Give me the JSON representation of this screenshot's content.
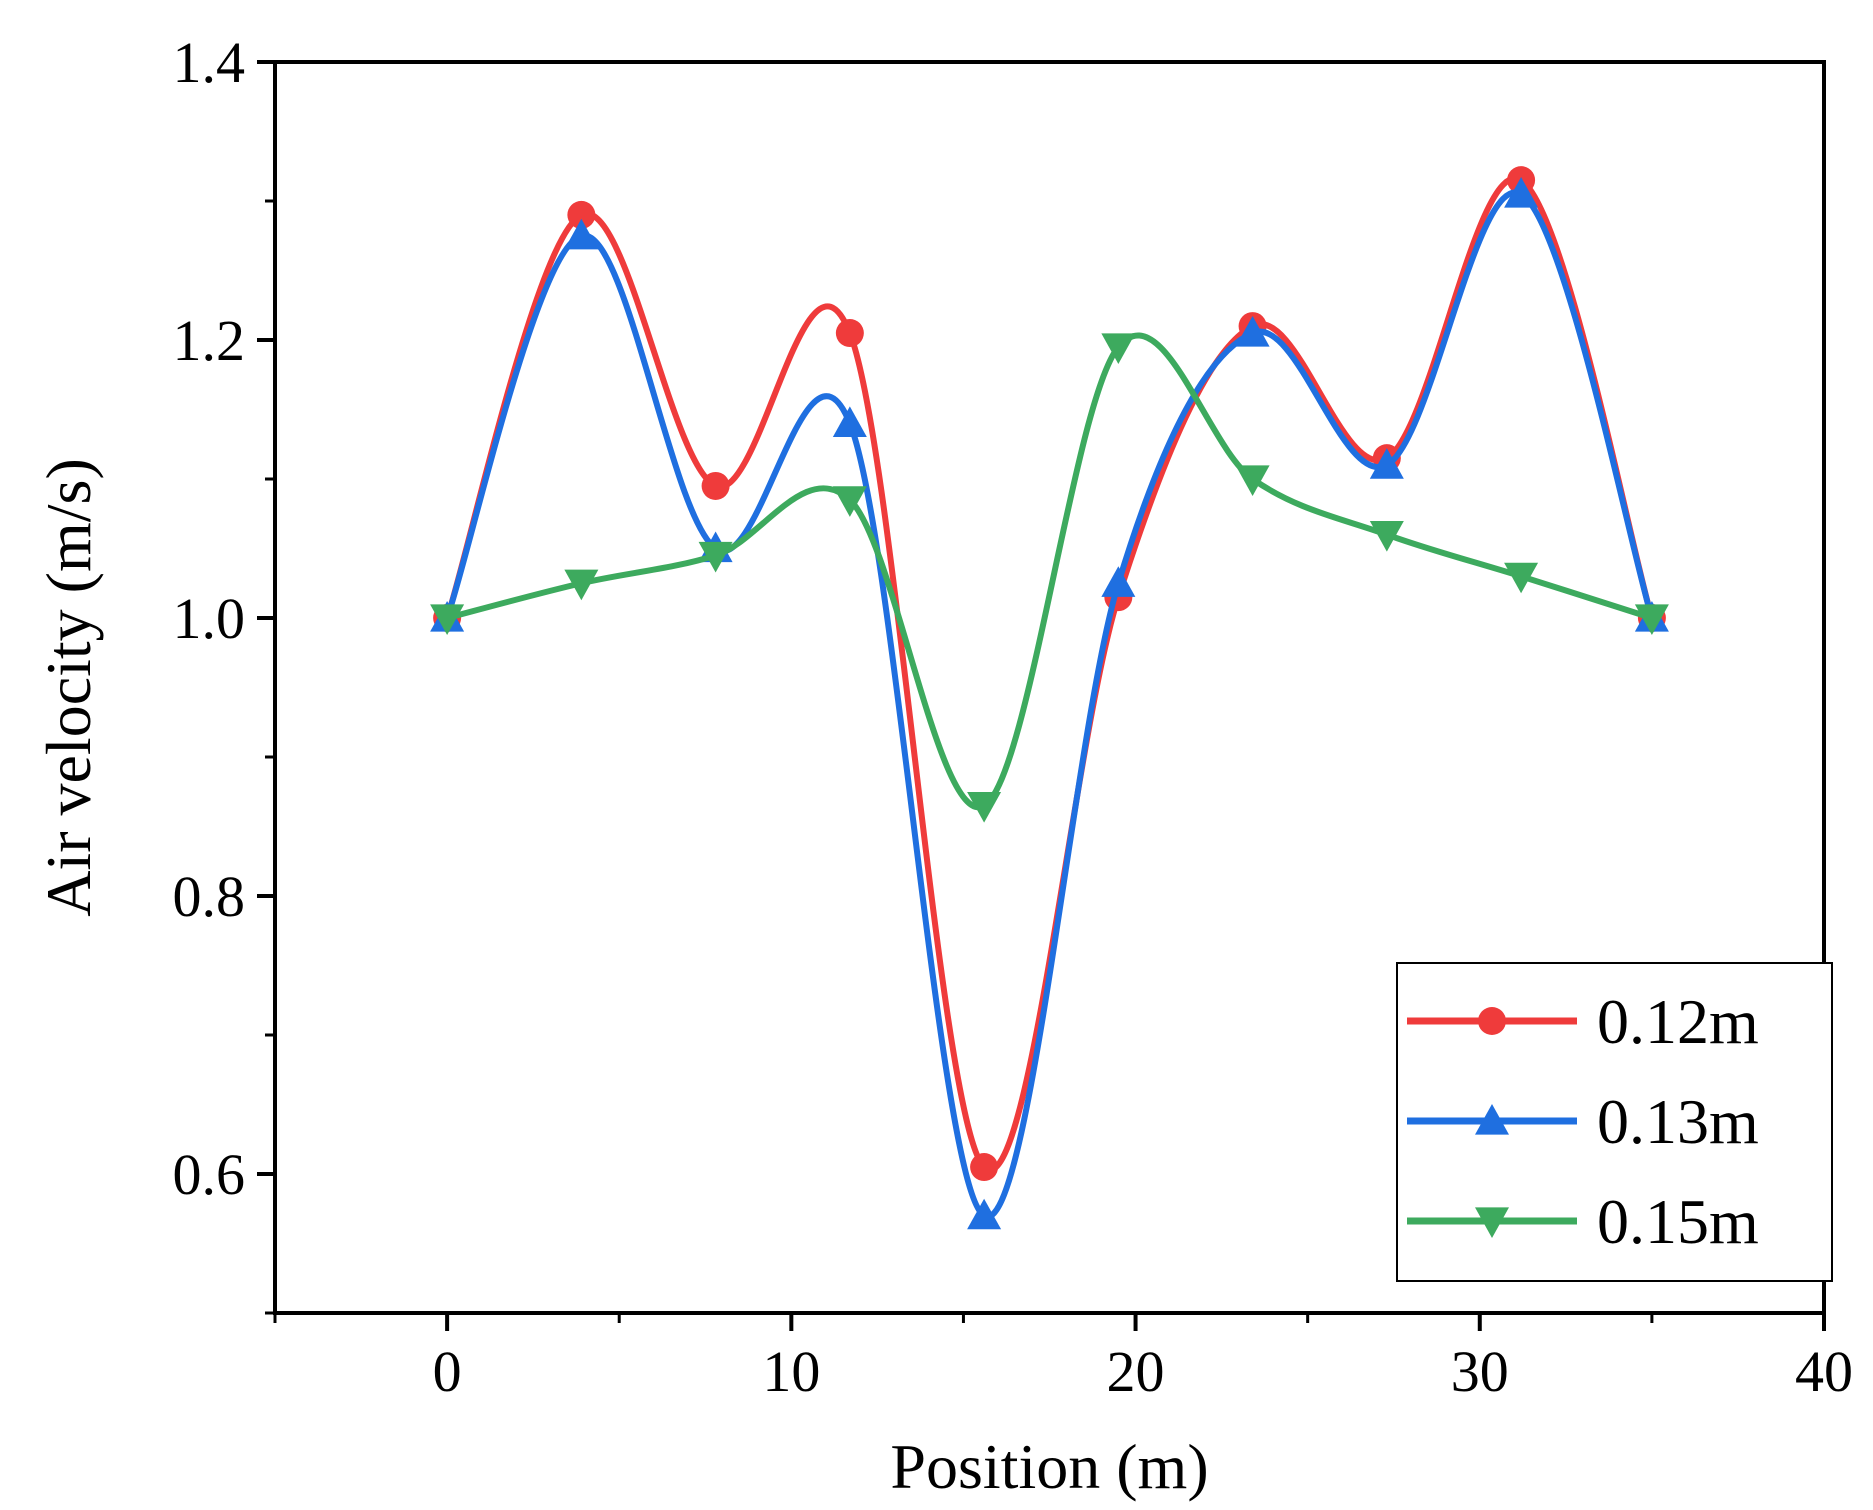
{
  "chart_data": {
    "type": "line",
    "title": "",
    "xlabel": "Position (m)",
    "ylabel": "Air velocity (m/s)",
    "xlim": [
      -5,
      40
    ],
    "ylim": [
      0.5,
      1.4
    ],
    "xticks": [
      0,
      10,
      20,
      30,
      40
    ],
    "xtick_labels": [
      "0",
      "10",
      "20",
      "30",
      "40"
    ],
    "yticks": [
      0.6,
      0.8,
      1.0,
      1.2,
      1.4
    ],
    "ytick_labels": [
      "0.6",
      "0.8",
      "1.0",
      "1.2",
      "1.4"
    ],
    "grid": false,
    "smooth": true,
    "legend_position": "bottom-right",
    "series": [
      {
        "name": "0.12m",
        "color": "#ef3b3b",
        "marker": "circle",
        "x": [
          0,
          3.9,
          7.8,
          11.7,
          15.6,
          19.5,
          23.4,
          27.3,
          31.2,
          35
        ],
        "values": [
          1.0,
          1.29,
          1.095,
          1.205,
          0.605,
          1.015,
          1.21,
          1.115,
          1.315,
          1.0
        ]
      },
      {
        "name": "0.13m",
        "color": "#1f6fe0",
        "marker": "triangle-up",
        "x": [
          0,
          3.9,
          7.8,
          11.7,
          15.6,
          19.5,
          23.4,
          27.3,
          31.2,
          35
        ],
        "values": [
          1.0,
          1.275,
          1.05,
          1.14,
          0.57,
          1.025,
          1.205,
          1.11,
          1.305,
          1.0
        ]
      },
      {
        "name": "0.15m",
        "color": "#3daa5e",
        "marker": "triangle-down",
        "x": [
          0,
          3.9,
          7.8,
          11.7,
          15.6,
          19.5,
          23.4,
          27.3,
          31.2,
          35
        ],
        "values": [
          1.0,
          1.025,
          1.045,
          1.085,
          0.865,
          1.195,
          1.1,
          1.06,
          1.03,
          1.0
        ]
      }
    ]
  }
}
